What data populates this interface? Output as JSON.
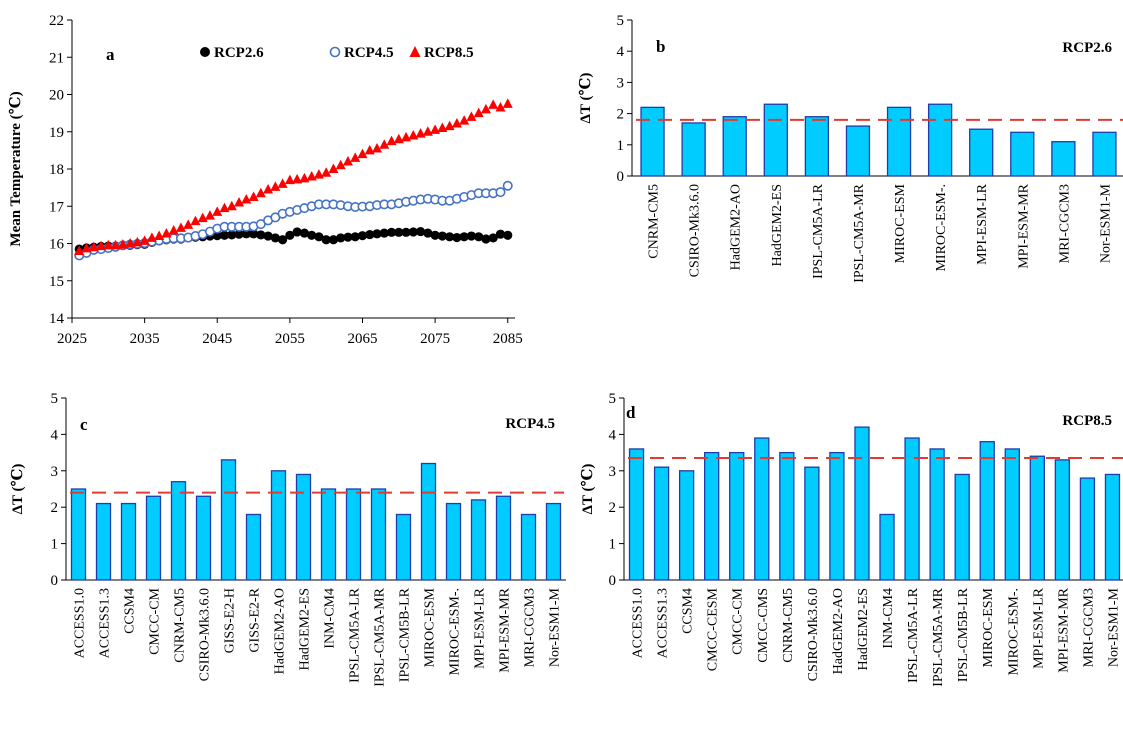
{
  "chart_data": [
    {
      "id": "a",
      "type": "scatter",
      "panel_letter": "a",
      "ylabel": "Mean Temperature (℃)",
      "xlabel": "",
      "xlim": [
        2025,
        2086
      ],
      "ylim": [
        14,
        22
      ],
      "xticks": [
        2025,
        2035,
        2045,
        2055,
        2065,
        2075,
        2085
      ],
      "yticks": [
        14,
        15,
        16,
        17,
        18,
        19,
        20,
        21,
        22
      ],
      "legend_position": "top",
      "x": [
        2026,
        2027,
        2028,
        2029,
        2030,
        2031,
        2032,
        2033,
        2034,
        2035,
        2036,
        2037,
        2038,
        2039,
        2040,
        2041,
        2042,
        2043,
        2044,
        2045,
        2046,
        2047,
        2048,
        2049,
        2050,
        2051,
        2052,
        2053,
        2054,
        2055,
        2056,
        2057,
        2058,
        2059,
        2060,
        2061,
        2062,
        2063,
        2064,
        2065,
        2066,
        2067,
        2068,
        2069,
        2070,
        2071,
        2072,
        2073,
        2074,
        2075,
        2076,
        2077,
        2078,
        2079,
        2080,
        2081,
        2082,
        2083,
        2084,
        2085
      ],
      "series": [
        {
          "name": "RCP2.6",
          "marker": "circle-filled",
          "color": "#000000",
          "values": [
            15.85,
            15.88,
            15.9,
            15.92,
            15.93,
            15.93,
            15.95,
            15.95,
            15.97,
            15.98,
            16.03,
            16.07,
            16.1,
            16.12,
            16.12,
            16.15,
            16.17,
            16.18,
            16.2,
            16.21,
            16.22,
            16.23,
            16.25,
            16.26,
            16.26,
            16.23,
            16.2,
            16.15,
            16.1,
            16.22,
            16.31,
            16.28,
            16.22,
            16.18,
            16.1,
            16.1,
            16.15,
            16.17,
            16.18,
            16.21,
            16.24,
            16.26,
            16.28,
            16.3,
            16.3,
            16.3,
            16.31,
            16.32,
            16.28,
            16.22,
            16.2,
            16.18,
            16.16,
            16.18,
            16.2,
            16.18,
            16.12,
            16.15,
            16.25,
            16.22
          ]
        },
        {
          "name": "RCP4.5",
          "marker": "circle-open",
          "color": "#4472C4",
          "values": [
            15.68,
            15.75,
            15.83,
            15.85,
            15.88,
            15.91,
            15.95,
            15.97,
            15.99,
            16.01,
            16.05,
            16.08,
            16.12,
            16.14,
            16.14,
            16.16,
            16.2,
            16.25,
            16.32,
            16.4,
            16.45,
            16.45,
            16.45,
            16.45,
            16.46,
            16.52,
            16.62,
            16.7,
            16.8,
            16.85,
            16.9,
            16.95,
            17.0,
            17.05,
            17.05,
            17.05,
            17.03,
            17.0,
            16.98,
            16.99,
            17.0,
            17.03,
            17.05,
            17.05,
            17.08,
            17.12,
            17.15,
            17.18,
            17.2,
            17.18,
            17.15,
            17.15,
            17.2,
            17.25,
            17.3,
            17.35,
            17.35,
            17.35,
            17.38,
            17.55
          ]
        },
        {
          "name": "RCP8.5",
          "marker": "triangle-filled",
          "color": "#FF0000",
          "values": [
            15.8,
            15.87,
            15.9,
            15.93,
            15.95,
            15.95,
            15.97,
            16.0,
            16.03,
            16.07,
            16.15,
            16.2,
            16.27,
            16.35,
            16.42,
            16.5,
            16.6,
            16.68,
            16.75,
            16.85,
            16.95,
            17.0,
            17.1,
            17.18,
            17.25,
            17.35,
            17.45,
            17.52,
            17.6,
            17.7,
            17.72,
            17.75,
            17.8,
            17.85,
            17.9,
            18.0,
            18.1,
            18.2,
            18.3,
            18.4,
            18.5,
            18.55,
            18.65,
            18.75,
            18.8,
            18.85,
            18.9,
            18.95,
            19.0,
            19.05,
            19.1,
            19.15,
            19.22,
            19.3,
            19.4,
            19.5,
            19.6,
            19.72,
            19.65,
            19.75
          ]
        }
      ]
    },
    {
      "id": "b",
      "type": "bar",
      "panel_letter": "b",
      "scenario": "RCP2.6",
      "ylabel": "ΔT (℃)",
      "xlabel": "",
      "ylim": [
        0,
        5
      ],
      "yticks": [
        0,
        1,
        2,
        3,
        4,
        5
      ],
      "mean_line": 1.8,
      "bar_color": "#00CCFF",
      "bar_edge": "#1F3DA8",
      "mean_line_color": "#E03C31",
      "categories": [
        "CNRM-CM5",
        "CSIRO-Mk3.6.0",
        "HadGEM2-AO",
        "HadGEM2-ES",
        "IPSL-CM5A-LR",
        "IPSL-CM5A-MR",
        "MIROC-ESM",
        "MIROC-ESM-.",
        "MPI-ESM-LR",
        "MPI-ESM-MR",
        "MRI-CGCM3",
        "Nor-ESM1-M"
      ],
      "values": [
        2.2,
        1.7,
        1.9,
        2.3,
        1.9,
        1.6,
        2.2,
        2.3,
        1.5,
        1.4,
        1.1,
        1.4
      ]
    },
    {
      "id": "c",
      "type": "bar",
      "panel_letter": "c",
      "scenario": "RCP4.5",
      "ylabel": "ΔT (℃)",
      "xlabel": "",
      "ylim": [
        0,
        5
      ],
      "yticks": [
        0,
        1,
        2,
        3,
        4,
        5
      ],
      "mean_line": 2.4,
      "bar_color": "#00CCFF",
      "bar_edge": "#1F3DA8",
      "mean_line_color": "#E03C31",
      "categories": [
        "ACCESS1.0",
        "ACCESS1.3",
        "CCSM4",
        "CMCC-CM",
        "CNRM-CM5",
        "CSIRO-Mk3.6.0",
        "GISS-E2-H",
        "GISS-E2-R",
        "HadGEM2-AO",
        "HadGEM2-ES",
        "INM-CM4",
        "IPSL-CM5A-LR",
        "IPSL-CM5A-MR",
        "IPSL-CM5B-LR",
        "MIROC-ESM",
        "MIROC-ESM-.",
        "MPI-ESM-LR",
        "MPI-ESM-MR",
        "MRI-CGCM3",
        "Nor-ESM1-M"
      ],
      "values": [
        2.5,
        2.1,
        2.1,
        2.3,
        2.7,
        2.3,
        3.3,
        1.8,
        3.0,
        2.9,
        2.5,
        2.5,
        2.5,
        1.8,
        3.2,
        2.1,
        2.2,
        2.3,
        1.8,
        2.1
      ]
    },
    {
      "id": "d",
      "type": "bar",
      "panel_letter": "d",
      "scenario": "RCP8.5",
      "ylabel": "ΔT (℃)",
      "xlabel": "",
      "ylim": [
        0,
        5
      ],
      "yticks": [
        0,
        1,
        2,
        3,
        4,
        5
      ],
      "mean_line": 3.35,
      "bar_color": "#00CCFF",
      "bar_edge": "#1F3DA8",
      "mean_line_color": "#E03C31",
      "categories": [
        "ACCESS1.0",
        "ACCESS1.3",
        "CCSM4",
        "CMCC-CESM",
        "CMCC-CM",
        "CMCC-CMS",
        "CNRM-CM5",
        "CSIRO-Mk3.6.0",
        "HadGEM2-AO",
        "HadGEM2-ES",
        "INM-CM4",
        "IPSL-CM5A-LR",
        "IPSL-CM5A-MR",
        "IPSL-CM5B-LR",
        "MIROC-ESM",
        "MIROC-ESM-.",
        "MPI-ESM-LR",
        "MPI-ESM-MR",
        "MRI-CGCM3",
        "Nor-ESM1-M"
      ],
      "values": [
        3.6,
        3.1,
        3.0,
        3.5,
        3.5,
        3.9,
        3.5,
        3.1,
        3.5,
        4.2,
        1.8,
        3.9,
        3.6,
        2.9,
        3.8,
        3.6,
        3.4,
        3.3,
        2.8,
        2.9
      ]
    }
  ]
}
